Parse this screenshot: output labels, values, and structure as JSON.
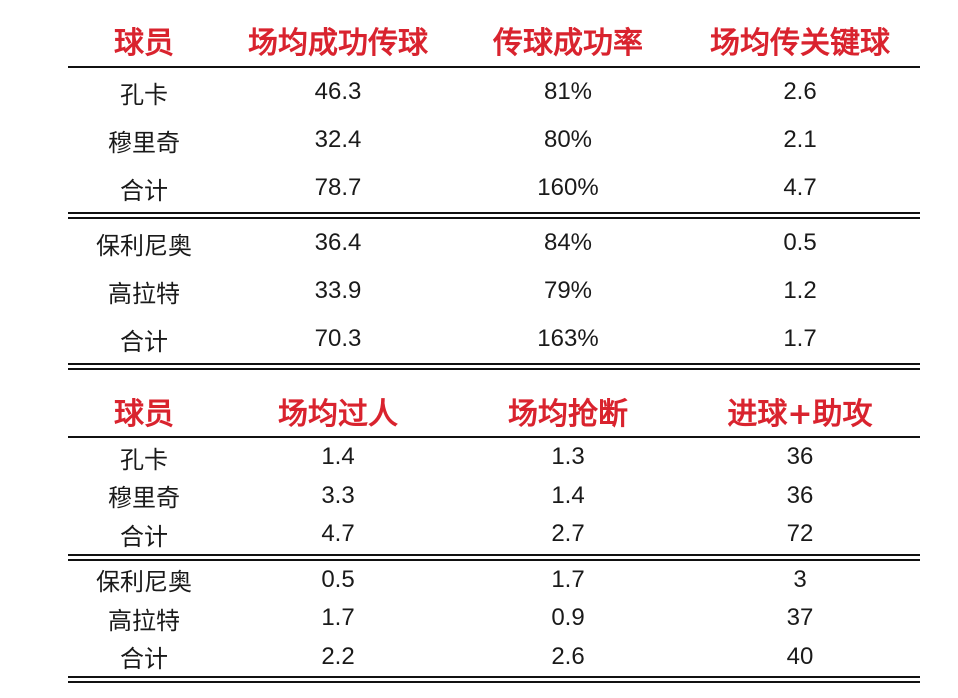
{
  "table1": {
    "headers": [
      "球员",
      "场均成功传球",
      "传球成功率",
      "场均传关键球"
    ],
    "group1": [
      [
        "孔卡",
        "46.3",
        "81%",
        "2.6"
      ],
      [
        "穆里奇",
        "32.4",
        "80%",
        "2.1"
      ],
      [
        "合计",
        "78.7",
        "160%",
        "4.7"
      ]
    ],
    "group2": [
      [
        "保利尼奥",
        "36.4",
        "84%",
        "0.5"
      ],
      [
        "高拉特",
        "33.9",
        "79%",
        "1.2"
      ],
      [
        "合计",
        "70.3",
        "163%",
        "1.7"
      ]
    ]
  },
  "table2": {
    "headers": [
      "球员",
      "场均过人",
      "场均抢断",
      "进球+助攻"
    ],
    "group1": [
      [
        "孔卡",
        "1.4",
        "1.3",
        "36"
      ],
      [
        "穆里奇",
        "3.3",
        "1.4",
        "36"
      ],
      [
        "合计",
        "4.7",
        "2.7",
        "72"
      ]
    ],
    "group2": [
      [
        "保利尼奥",
        "0.5",
        "1.7",
        "3"
      ],
      [
        "高拉特",
        "1.7",
        "0.9",
        "37"
      ],
      [
        "合计",
        "2.2",
        "2.6",
        "40"
      ]
    ]
  },
  "colors": {
    "header_text": "#d9232e",
    "body_text": "#1a1a1a",
    "rule": "#111111"
  }
}
